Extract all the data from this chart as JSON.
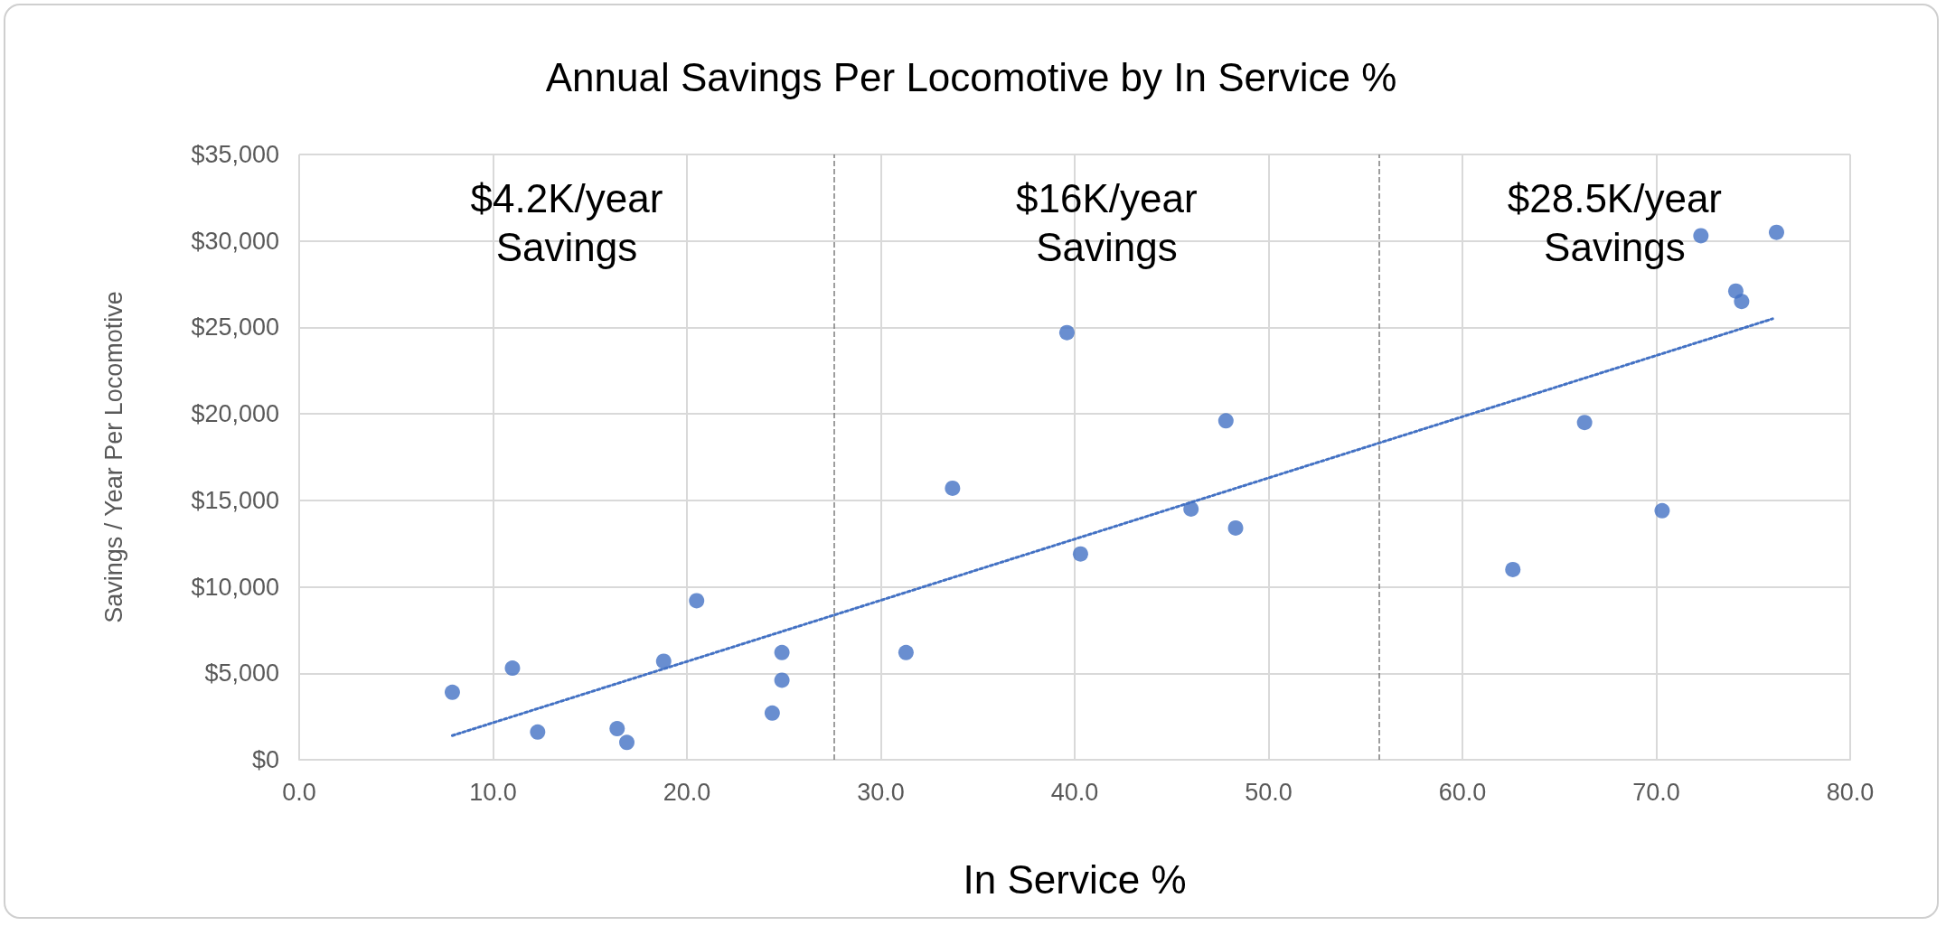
{
  "chart_data": {
    "type": "scatter",
    "title": "Annual Savings Per Locomotive by In Service %",
    "xlabel": "In Service %",
    "ylabel": "Savings / Year Per Locomotive",
    "xlim": [
      0,
      80
    ],
    "xticks": [
      {
        "value": 0,
        "label": "0.0"
      },
      {
        "value": 10,
        "label": "10.0"
      },
      {
        "value": 20,
        "label": "20.0"
      },
      {
        "value": 30,
        "label": "30.0"
      },
      {
        "value": 40,
        "label": "40.0"
      },
      {
        "value": 50,
        "label": "50.0"
      },
      {
        "value": 60,
        "label": "60.0"
      },
      {
        "value": 70,
        "label": "70.0"
      },
      {
        "value": 80,
        "label": "80.0"
      }
    ],
    "ylim": [
      0,
      35000
    ],
    "yticks": [
      {
        "value": 0,
        "label": "$0"
      },
      {
        "value": 5000,
        "label": "$5,000"
      },
      {
        "value": 10000,
        "label": "$10,000"
      },
      {
        "value": 15000,
        "label": "$15,000"
      },
      {
        "value": 20000,
        "label": "$20,000"
      },
      {
        "value": 25000,
        "label": "$25,000"
      },
      {
        "value": 30000,
        "label": "$30,000"
      },
      {
        "value": 35000,
        "label": "$35,000"
      }
    ],
    "grid": true,
    "marker": "circle",
    "series": [
      {
        "color": "#4472c4",
        "x": [
          7.9,
          11.0,
          12.3,
          16.4,
          16.9,
          18.8,
          20.5,
          24.4,
          24.9,
          24.9,
          31.3,
          33.7,
          39.6,
          40.3,
          46.0,
          47.8,
          48.3,
          62.6,
          66.3,
          70.3,
          72.3,
          74.1,
          74.4,
          76.2
        ],
        "values": [
          3900,
          5300,
          1600,
          1800,
          1000,
          5700,
          9200,
          2700,
          6200,
          4600,
          6200,
          15700,
          24700,
          11900,
          14500,
          19600,
          13400,
          11000,
          19500,
          14400,
          30300,
          27100,
          26500,
          30500
        ]
      },
      {
        "type": "line",
        "color": "#4472c4",
        "line_style": "dotted",
        "marker": "none",
        "x": [
          7.9,
          76.0
        ],
        "values": [
          1400,
          25500
        ]
      }
    ],
    "ref_lines": [
      {
        "axis": "x",
        "value": 27.6,
        "label": null,
        "color": "#7f7f7f",
        "line_style": "dashed"
      },
      {
        "axis": "x",
        "value": 55.7,
        "label": null,
        "color": "#7f7f7f",
        "line_style": "dashed"
      }
    ],
    "annotations": [
      "$4.2K/year\nSavings",
      "$16K/year\nSavings",
      "$28.5K/year\nSavings"
    ]
  }
}
